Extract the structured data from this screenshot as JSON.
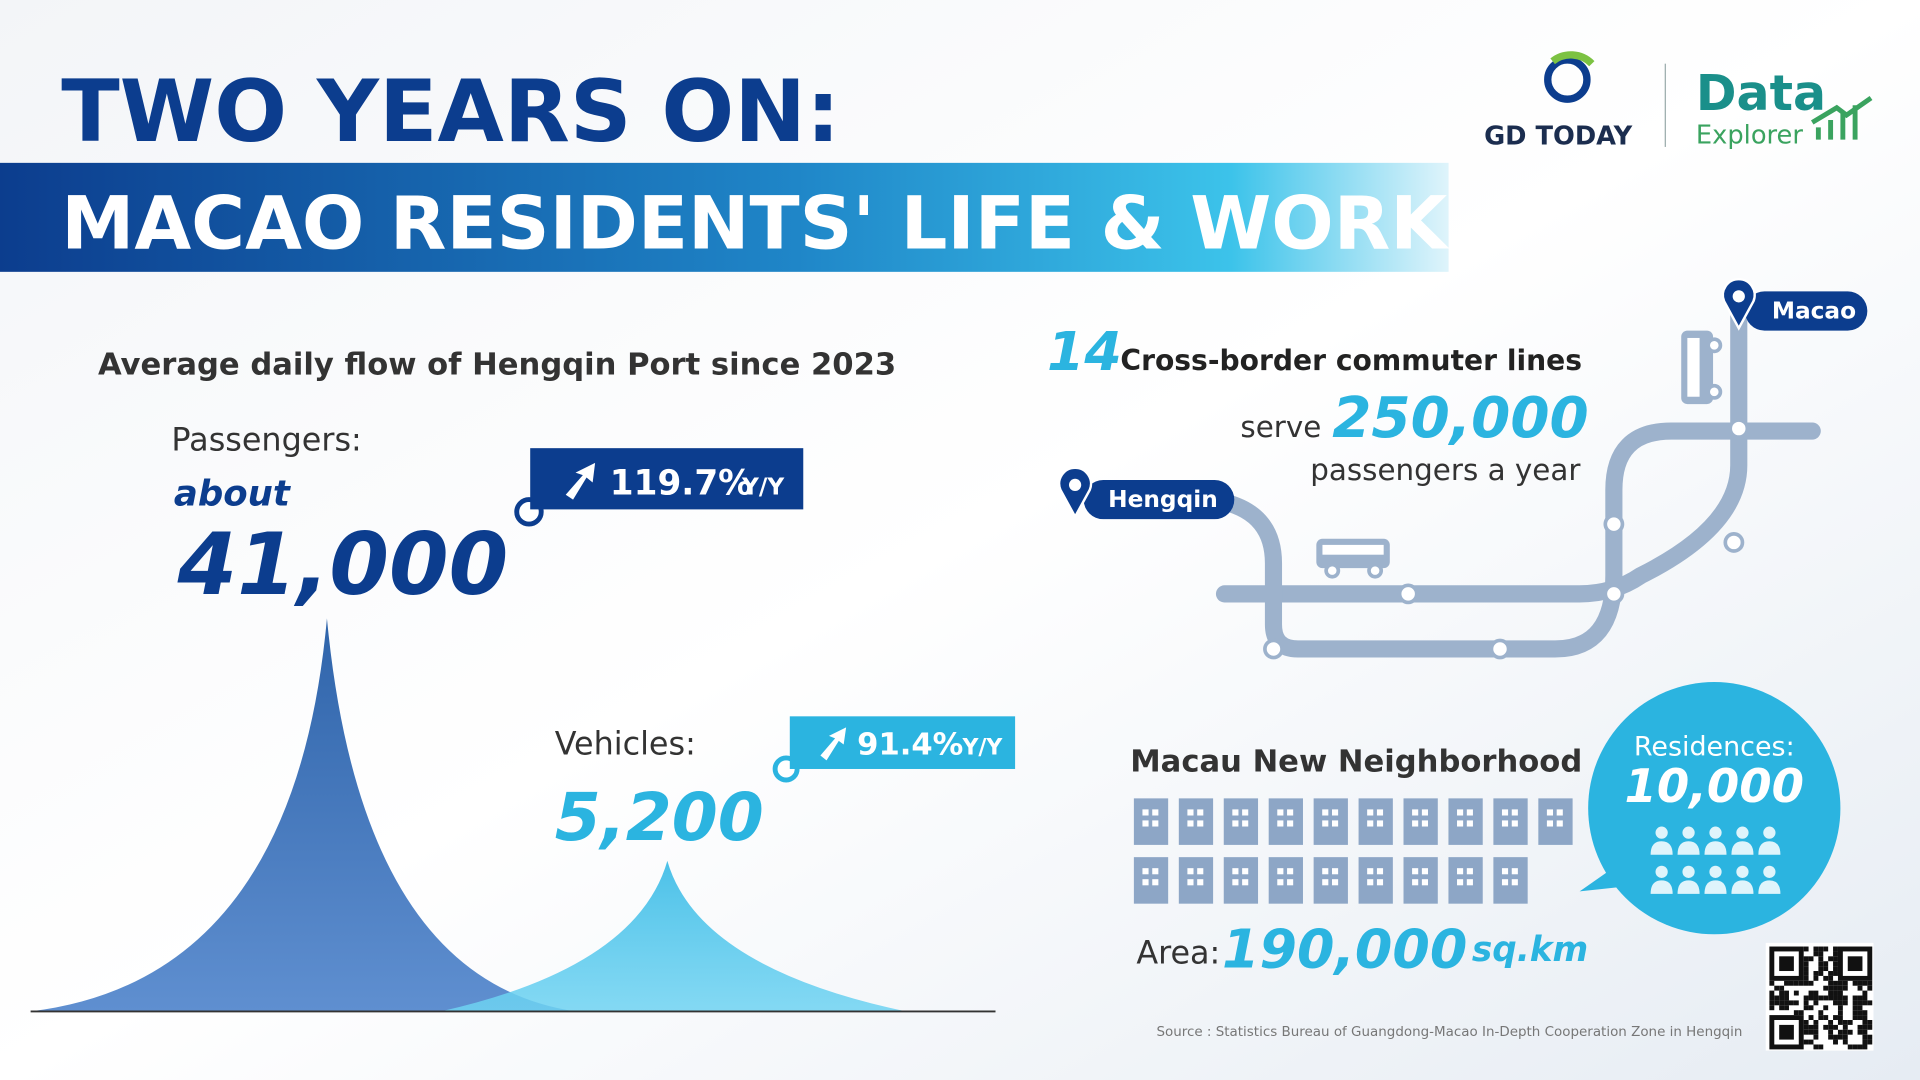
{
  "header": {
    "title_line1": "TWO YEARS ON:",
    "title_line2": "MACAO RESIDENTS' LIFE & WORK",
    "brand": "GD TODAY",
    "brand2_line1": "Data",
    "brand2_line2": "Explorer"
  },
  "port_flow": {
    "heading": "Average daily flow of Hengqin Port since 2023",
    "passengers": {
      "label": "Passengers:",
      "qualifier": "about",
      "value": "41,000",
      "change": "119.7%",
      "change_unit": "Y/Y"
    },
    "vehicles": {
      "label": "Vehicles:",
      "value": "5,200",
      "change": "91.4%",
      "change_unit": "Y/Y"
    }
  },
  "commute": {
    "count": "14",
    "lines_label": "Cross-border commuter lines",
    "serve": "serve",
    "passengers": "250,000",
    "passengers_label": "passengers a year",
    "origin": "Hengqin",
    "destination": "Macao"
  },
  "neighborhood": {
    "title": "Macau New Neighborhood",
    "residences_label": "Residences:",
    "residences": "10,000",
    "area_label": "Area:",
    "area": "190,000",
    "area_unit": "sq.km"
  },
  "source": "Source : Statistics Bureau of Guangdong-Macao In-Depth Cooperation Zone in Hengqin"
}
